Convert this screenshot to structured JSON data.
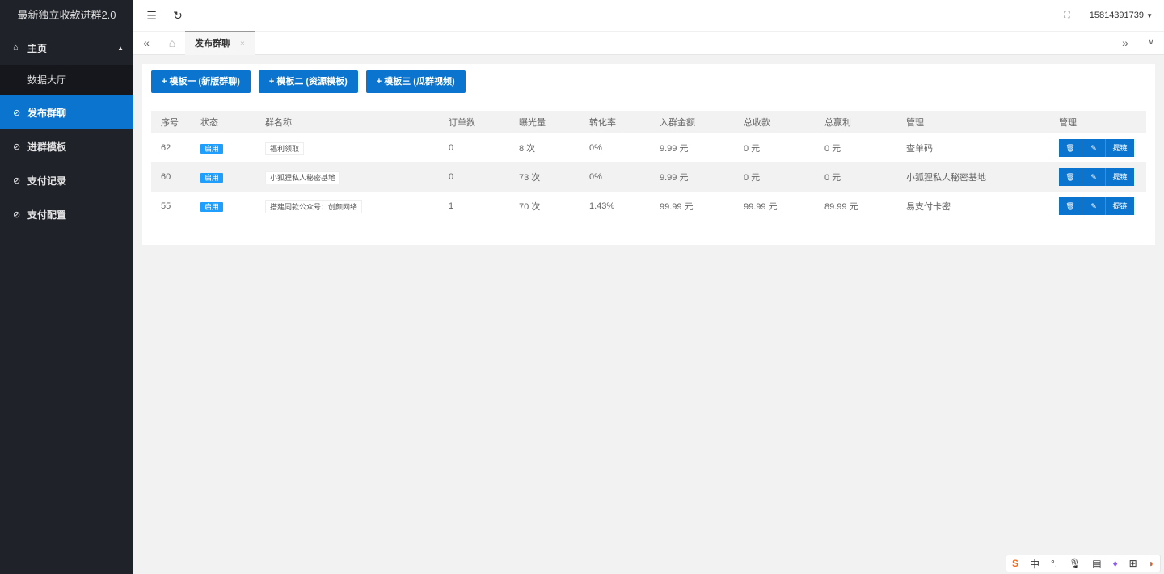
{
  "app_title": "最新独立收款进群2.0",
  "sidebar": {
    "items": [
      {
        "label": "主页",
        "icon": "home-icon"
      },
      {
        "label": "数据大厅"
      },
      {
        "label": "发布群聊",
        "icon": "shield-check-icon",
        "active": true
      },
      {
        "label": "进群模板",
        "icon": "shield-check-icon"
      },
      {
        "label": "支付记录",
        "icon": "shield-check-icon"
      },
      {
        "label": "支付配置",
        "icon": "shield-check-icon"
      }
    ]
  },
  "header": {
    "user": "15814391739"
  },
  "tabs": [
    {
      "label": "发布群聊"
    }
  ],
  "buttons": [
    "+ 模板一 (新版群聊)",
    "+ 模板二 (资源模板)",
    "+ 模板三 (瓜群视频)"
  ],
  "table": {
    "columns": [
      "序号",
      "状态",
      "群名称",
      "订单数",
      "曝光量",
      "转化率",
      "入群金额",
      "总收款",
      "总赢利",
      "管理",
      "管理"
    ],
    "rows": [
      {
        "id": "62",
        "status": "启用",
        "name": "福利领取",
        "orders": "0",
        "views": "8 次",
        "rate": "0%",
        "price": "9.99 元",
        "total": "0 元",
        "profit": "0 元",
        "manage": "查单码"
      },
      {
        "id": "60",
        "status": "启用",
        "name": "小狐狸私人秘密基地",
        "orders": "0",
        "views": "73 次",
        "rate": "0%",
        "price": "9.99 元",
        "total": "0 元",
        "profit": "0 元",
        "manage": "小狐狸私人秘密基地"
      },
      {
        "id": "55",
        "status": "启用",
        "name": "搭建同款公众号：创颜网络",
        "orders": "1",
        "views": "70 次",
        "rate": "1.43%",
        "price": "99.99 元",
        "total": "99.99 元",
        "profit": "89.99 元",
        "manage": "易支付卡密"
      }
    ],
    "op_link_label": "提链"
  },
  "ime": {
    "lang": "中"
  },
  "colors": {
    "sidebar": "#20222a",
    "accent": "#0b74cf",
    "badge": "#1e9fff"
  }
}
